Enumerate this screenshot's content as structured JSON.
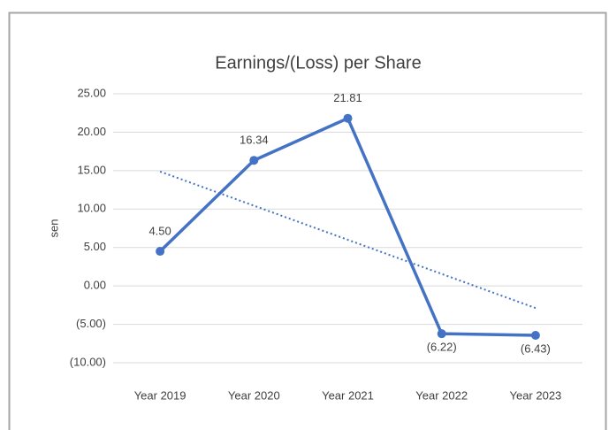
{
  "chart_data": {
    "type": "line",
    "title": "Earnings/(Loss) per Share",
    "y_label": "sen",
    "categories": [
      "Year 2019",
      "Year 2020",
      "Year 2021",
      "Year 2022",
      "Year 2023"
    ],
    "series": [
      {
        "color": "#4472c4",
        "values": [
          4.5,
          16.34,
          21.81,
          -6.22,
          -6.43
        ],
        "value_labels": [
          "4.50",
          "16.34",
          "21.81",
          "(6.22)",
          "(6.43)"
        ]
      }
    ],
    "trendline": {
      "type": "linear",
      "style": "dotted",
      "color": "#4472c4",
      "values": [
        14.88,
        10.44,
        6.0,
        1.56,
        -2.88
      ]
    },
    "ylim": [
      -10,
      25
    ],
    "yticks": [
      {
        "value": -10,
        "label": "(10.00)"
      },
      {
        "value": -5,
        "label": "(5.00)"
      },
      {
        "value": 0,
        "label": "0.00"
      },
      {
        "value": 5,
        "label": "5.00"
      },
      {
        "value": 10,
        "label": "10.00"
      },
      {
        "value": 15,
        "label": "15.00"
      },
      {
        "value": 20,
        "label": "20.00"
      },
      {
        "value": 25,
        "label": "25.00"
      }
    ],
    "grid": true
  }
}
